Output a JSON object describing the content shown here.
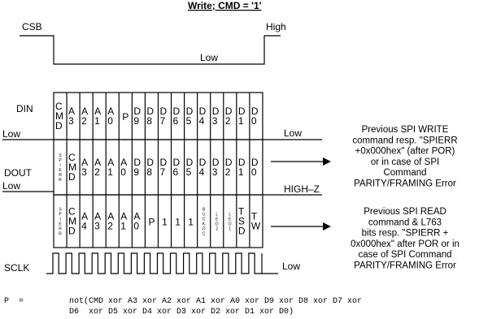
{
  "title": "Write; CMD = '1'",
  "signals": {
    "csb": "CSB",
    "din": "DIN",
    "dout": "DOUT",
    "sclk": "SCLK"
  },
  "levels": {
    "high": "High",
    "low": "Low",
    "high_z": "HIGH–Z"
  },
  "din_bits": [
    "CMD",
    "A3",
    "A2",
    "A1",
    "A0",
    "P",
    "D9",
    "D8",
    "D7",
    "D6",
    "D5",
    "D4",
    "D3",
    "D2",
    "D1",
    "D0"
  ],
  "dout_write_bits": [
    "SPIERR",
    "CMD",
    "A3",
    "A2",
    "A1",
    "A0",
    "D9",
    "D8",
    "D7",
    "D6",
    "D5",
    "D4",
    "D3",
    "D2",
    "D1",
    "D0"
  ],
  "dout_read_bits": [
    "SPIERR",
    "CMD",
    "A4",
    "A3",
    "A2",
    "A1",
    "A0",
    "P",
    "1",
    "1",
    "1",
    "BUCKOC",
    "LED2",
    "LED1",
    "TSD",
    "TW"
  ],
  "notes": {
    "write_resp": [
      "Previous SPI WRITE",
      "command resp. \"SPIERR",
      "+0x000hex\" (after POR)",
      "or in case of SPI",
      "Command",
      "PARITY/FRAMING Error"
    ],
    "read_resp": [
      "Previous SPI READ",
      "command & L763",
      "bits resp. \"SPIERR +",
      "0x000hex\" after POR or in",
      "case of SPI Command",
      "PARITY/FRAMING Error"
    ]
  },
  "parity": {
    "label": "P  =",
    "line1": "not(CMD xor A3 xor A2 xor A1 xor A0 xor D9 xor D8 xor D7 xor",
    "line2": "D6  xor D5 xor D4 xor D3 xor D2 xor D1 xor D0)"
  }
}
